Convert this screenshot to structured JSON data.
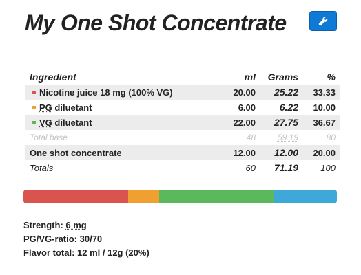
{
  "title": "My One Shot Concentrate",
  "toolbar": {
    "settings_icon": "wrench-icon"
  },
  "colors": {
    "nicotine": "#d9534f",
    "pg": "#f0a030",
    "vg": "#5cb85c",
    "flavor": "#3ea8d8",
    "button": "#0f7ad6"
  },
  "table": {
    "headers": {
      "ingredient": "Ingredient",
      "ml": "ml",
      "grams": "Grams",
      "percent": "%"
    },
    "rows": [
      {
        "prefix": "",
        "abbr": "",
        "name": "Nicotine juice 18 mg (100% VG)",
        "ml": "20.00",
        "grams": "25.22",
        "percent": "33.33"
      },
      {
        "prefix": "",
        "abbr": "PG",
        "name": " diluetant",
        "ml": "6.00",
        "grams": "6.22",
        "percent": "10.00"
      },
      {
        "prefix": "",
        "abbr": "VG",
        "name": " diluetant",
        "ml": "22.00",
        "grams": "27.75",
        "percent": "36.67"
      }
    ],
    "total_base": {
      "name": "Total base",
      "ml": "48",
      "grams": "59.19",
      "percent": "80"
    },
    "concentrate": {
      "name": "One shot concentrate",
      "ml": "12.00",
      "grams": "12.00",
      "percent": "20.00"
    },
    "totals": {
      "name": "Totals",
      "ml": "60",
      "grams": "71.19",
      "percent": "100"
    }
  },
  "mix_bar": [
    {
      "name": "nicotine",
      "percent": 33.33,
      "color": "#d9534f"
    },
    {
      "name": "pg",
      "percent": 10.0,
      "color": "#f0a030"
    },
    {
      "name": "vg",
      "percent": 36.67,
      "color": "#5cb85c"
    },
    {
      "name": "flavor",
      "percent": 20.0,
      "color": "#3ea8d8"
    }
  ],
  "summary": {
    "strength_label": "Strength: ",
    "strength_value": "6 mg",
    "pgvg_label": "PG/VG-ratio: ",
    "pgvg_value": "30/70",
    "flavor_label": "Flavor total: ",
    "flavor_value": "12 ml / 12g (20%)"
  }
}
